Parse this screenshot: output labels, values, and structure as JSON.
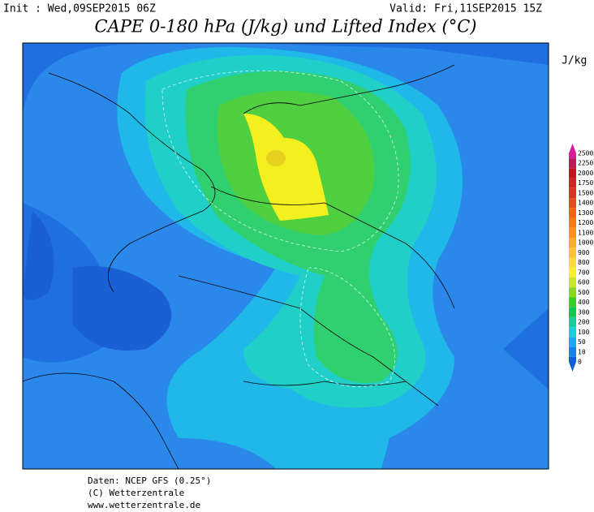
{
  "header": {
    "init": "Init : Wed,09SEP2015 06Z",
    "valid": "Valid: Fri,11SEP2015 15Z",
    "title": "CAPE 0-180 hPa (J/kg) und Lifted Index (°C)"
  },
  "colorbar": {
    "unit": "J/kg",
    "levels": [
      {
        "value": 2500,
        "color": "#d81b9a"
      },
      {
        "value": 2250,
        "color": "#c4155a"
      },
      {
        "value": 2000,
        "color": "#cc1020"
      },
      {
        "value": 1750,
        "color": "#d82020"
      },
      {
        "value": 1500,
        "color": "#e03020"
      },
      {
        "value": 1400,
        "color": "#e84a20"
      },
      {
        "value": 1300,
        "color": "#ee6420"
      },
      {
        "value": 1200,
        "color": "#f07c20"
      },
      {
        "value": 1100,
        "color": "#f49428"
      },
      {
        "value": 1000,
        "color": "#f8ac30"
      },
      {
        "value": 900,
        "color": "#fcc430"
      },
      {
        "value": 800,
        "color": "#fcdc30"
      },
      {
        "value": 700,
        "color": "#f8f020"
      },
      {
        "value": 600,
        "color": "#c8e820"
      },
      {
        "value": 500,
        "color": "#88d820"
      },
      {
        "value": 400,
        "color": "#40c830"
      },
      {
        "value": 300,
        "color": "#10c850"
      },
      {
        "value": 200,
        "color": "#10d0a0"
      },
      {
        "value": 100,
        "color": "#10d0d8"
      },
      {
        "value": 50,
        "color": "#20a8e8"
      },
      {
        "value": 10,
        "color": "#2080e0"
      },
      {
        "value": 0,
        "color": "#1060d8"
      }
    ]
  },
  "footer": [
    "Daten: NCEP GFS (0.25°)",
    "(C) Wetterzentrale",
    "www.wetterzentrale.de"
  ]
}
